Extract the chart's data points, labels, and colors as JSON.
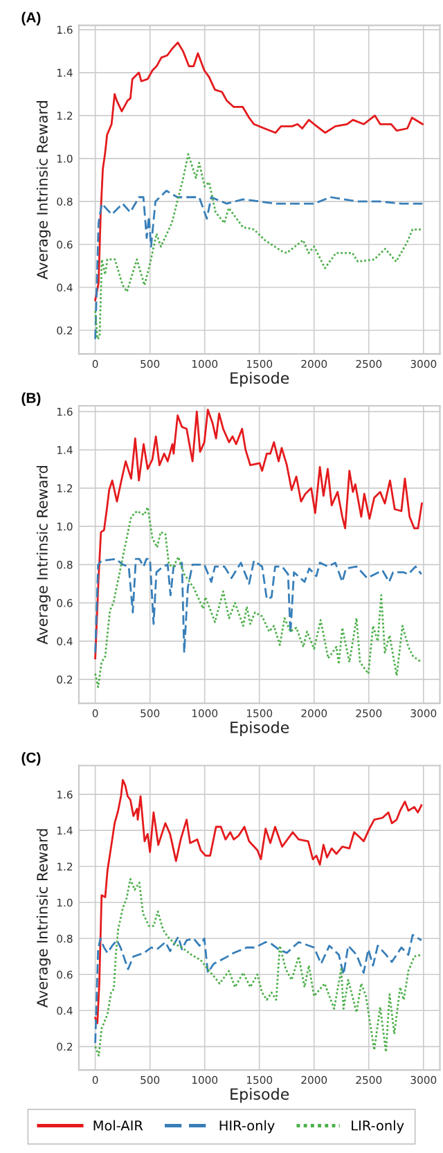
{
  "chart_data": [
    {
      "type": "line",
      "title": "(A)",
      "xlabel": "Episode",
      "ylabel": "Average Intrinsic Reward",
      "xlim": [
        -150,
        3150
      ],
      "ylim": [
        0.09,
        1.62
      ],
      "xticks": [
        0,
        500,
        1000,
        1500,
        2000,
        2500,
        3000
      ],
      "yticks": [
        {
          "value": 0.2,
          "label": "0.2"
        },
        {
          "value": 0.4,
          "label": "0.4"
        },
        {
          "value": 0.6,
          "label": "0.6"
        },
        {
          "value": 0.8,
          "label": "0.8"
        },
        {
          "value": 1.0,
          "label": "1.0"
        },
        {
          "value": 1.2,
          "label": "1.2"
        },
        {
          "value": 1.4,
          "label": "1.4"
        },
        {
          "value": 1.6,
          "label": "1.6"
        }
      ],
      "grid": true,
      "legend": "bottom",
      "series": [
        {
          "name": "Mol-AIR",
          "color": "#e41a1c",
          "line_style": "solid",
          "x": [
            0,
            30,
            50,
            69,
            91,
            108,
            149,
            177,
            196,
            242,
            296,
            321,
            339,
            399,
            421,
            479,
            522,
            561,
            604,
            658,
            701,
            755,
            802,
            856,
            899,
            938,
            997,
            1040,
            1094,
            1158,
            1201,
            1266,
            1348,
            1406,
            1450,
            1547,
            1648,
            1698,
            1799,
            1849,
            1892,
            1952,
            2000,
            2101,
            2194,
            2302,
            2355,
            2453,
            2556,
            2604,
            2705,
            2755,
            2852,
            2895,
            2992
          ],
          "values": [
            0.34,
            0.42,
            0.75,
            0.95,
            1.03,
            1.11,
            1.16,
            1.3,
            1.27,
            1.22,
            1.27,
            1.28,
            1.37,
            1.4,
            1.36,
            1.37,
            1.41,
            1.43,
            1.47,
            1.48,
            1.51,
            1.54,
            1.5,
            1.43,
            1.43,
            1.49,
            1.41,
            1.38,
            1.32,
            1.31,
            1.27,
            1.24,
            1.24,
            1.19,
            1.16,
            1.14,
            1.12,
            1.15,
            1.15,
            1.16,
            1.14,
            1.18,
            1.16,
            1.12,
            1.15,
            1.16,
            1.18,
            1.16,
            1.2,
            1.16,
            1.16,
            1.13,
            1.14,
            1.19,
            1.16
          ]
        },
        {
          "name": "HIR-only",
          "color": "#377eb8",
          "line_style": "dashed",
          "x": [
            0,
            30,
            60,
            150,
            250,
            320,
            400,
            440,
            470,
            490,
            510,
            550,
            650,
            750,
            850,
            950,
            1020,
            1060,
            1200,
            1350,
            1500,
            1650,
            1750,
            2000,
            2150,
            2400,
            2600,
            2800,
            2990
          ],
          "values": [
            0.16,
            0.7,
            0.79,
            0.74,
            0.79,
            0.75,
            0.82,
            0.82,
            0.63,
            0.73,
            0.59,
            0.8,
            0.85,
            0.82,
            0.82,
            0.82,
            0.72,
            0.82,
            0.79,
            0.81,
            0.8,
            0.79,
            0.79,
            0.79,
            0.82,
            0.8,
            0.8,
            0.79,
            0.79
          ]
        },
        {
          "name": "LIR-only",
          "color": "#4daf4a",
          "line_style": "dotted",
          "x": [
            0,
            20,
            40,
            60,
            90,
            110,
            180,
            250,
            290,
            380,
            450,
            500,
            560,
            600,
            700,
            800,
            850,
            920,
            950,
            1000,
            1040,
            1100,
            1180,
            1220,
            1350,
            1450,
            1550,
            1700,
            1750,
            1900,
            1950,
            2000,
            2100,
            2200,
            2350,
            2400,
            2550,
            2650,
            2750,
            2850,
            2900,
            2990
          ],
          "values": [
            0.29,
            0.16,
            0.17,
            0.53,
            0.46,
            0.53,
            0.53,
            0.41,
            0.38,
            0.53,
            0.41,
            0.51,
            0.65,
            0.59,
            0.7,
            0.9,
            1.02,
            0.91,
            0.98,
            0.87,
            0.89,
            0.75,
            0.7,
            0.77,
            0.68,
            0.67,
            0.62,
            0.57,
            0.56,
            0.62,
            0.56,
            0.59,
            0.49,
            0.56,
            0.56,
            0.52,
            0.53,
            0.58,
            0.52,
            0.61,
            0.67,
            0.67
          ]
        }
      ]
    },
    {
      "type": "line",
      "title": "(B)",
      "xlabel": "Episode",
      "ylabel": "Average Intrinsic Reward",
      "xlim": [
        -150,
        3150
      ],
      "ylim": [
        0.075,
        1.63
      ],
      "xticks": [
        0,
        500,
        1000,
        1500,
        2000,
        2500,
        3000
      ],
      "yticks": [
        {
          "value": 0.2,
          "label": "0.2"
        },
        {
          "value": 0.4,
          "label": "0.4"
        },
        {
          "value": 0.6,
          "label": "0.6"
        },
        {
          "value": 0.8,
          "label": "0.8"
        },
        {
          "value": 1.0,
          "label": "1.0"
        },
        {
          "value": 1.2,
          "label": "1.2"
        },
        {
          "value": 1.4,
          "label": "1.4"
        },
        {
          "value": 1.6,
          "label": "1.6"
        }
      ],
      "grid": true,
      "legend": "bottom",
      "series": [
        {
          "name": "Mol-AIR",
          "color": "#e41a1c",
          "line_style": "solid",
          "x": [
            0,
            30,
            52,
            80,
            108,
            127,
            155,
            198,
            235,
            278,
            328,
            365,
            399,
            442,
            479,
            522,
            554,
            587,
            630,
            662,
            705,
            716,
            753,
            792,
            835,
            889,
            928,
            958,
            997,
            1029,
            1072,
            1104,
            1132,
            1169,
            1223,
            1255,
            1288,
            1342,
            1374,
            1417,
            1503,
            1525,
            1568,
            1600,
            1633,
            1676,
            1704,
            1751,
            1795,
            1838,
            1881,
            1920,
            1974,
            2010,
            2053,
            2086,
            2125,
            2161,
            2215,
            2258,
            2284,
            2323,
            2355,
            2377,
            2431,
            2459,
            2506,
            2550,
            2604,
            2647,
            2694,
            2737,
            2798,
            2830,
            2873,
            2916,
            2950,
            2985
          ],
          "values": [
            0.31,
            0.73,
            0.97,
            0.98,
            1.1,
            1.19,
            1.24,
            1.13,
            1.23,
            1.34,
            1.25,
            1.46,
            1.24,
            1.43,
            1.3,
            1.35,
            1.47,
            1.32,
            1.38,
            1.34,
            1.43,
            1.38,
            1.58,
            1.52,
            1.51,
            1.34,
            1.6,
            1.39,
            1.44,
            1.61,
            1.54,
            1.46,
            1.59,
            1.51,
            1.44,
            1.47,
            1.43,
            1.51,
            1.4,
            1.32,
            1.33,
            1.29,
            1.38,
            1.38,
            1.44,
            1.34,
            1.41,
            1.32,
            1.19,
            1.26,
            1.13,
            1.17,
            1.2,
            1.07,
            1.31,
            1.16,
            1.3,
            1.11,
            1.18,
            1.05,
            0.99,
            1.29,
            1.18,
            1.22,
            1.05,
            1.17,
            1.04,
            1.15,
            1.18,
            1.12,
            1.24,
            1.09,
            1.08,
            1.25,
            1.05,
            0.99,
            0.99,
            1.12
          ]
        },
        {
          "name": "HIR-only",
          "color": "#377eb8",
          "line_style": "dashed",
          "x": [
            0,
            26,
            58,
            188,
            252,
            306,
            343,
            371,
            403,
            442,
            468,
            500,
            533,
            559,
            619,
            662,
            688,
            716,
            770,
            792,
            813,
            846,
            889,
            997,
            1061,
            1094,
            1180,
            1245,
            1331,
            1406,
            1450,
            1525,
            1568,
            1611,
            1644,
            1708,
            1762,
            1784,
            1816,
            1913,
            1956,
            2021,
            2053,
            2129,
            2194,
            2258,
            2291,
            2388,
            2485,
            2625,
            2686,
            2722,
            2819,
            2862,
            2927,
            2981
          ],
          "values": [
            0.34,
            0.8,
            0.82,
            0.83,
            0.8,
            0.79,
            0.55,
            0.83,
            0.83,
            0.79,
            0.83,
            0.83,
            0.49,
            0.76,
            0.79,
            0.8,
            0.64,
            0.79,
            0.8,
            0.81,
            0.34,
            0.68,
            0.8,
            0.8,
            0.71,
            0.79,
            0.79,
            0.73,
            0.81,
            0.7,
            0.82,
            0.79,
            0.62,
            0.63,
            0.79,
            0.79,
            0.75,
            0.44,
            0.76,
            0.71,
            0.78,
            0.74,
            0.81,
            0.79,
            0.81,
            0.71,
            0.78,
            0.79,
            0.73,
            0.77,
            0.71,
            0.76,
            0.76,
            0.75,
            0.79,
            0.75
          ]
        },
        {
          "name": "LIR-only",
          "color": "#4daf4a",
          "line_style": "dotted",
          "x": [
            0,
            26,
            58,
            91,
            134,
            166,
            252,
            328,
            382,
            447,
            479,
            522,
            565,
            598,
            641,
            673,
            716,
            759,
            813,
            899,
            986,
            1007,
            1094,
            1169,
            1223,
            1277,
            1352,
            1385,
            1417,
            1460,
            1525,
            1590,
            1633,
            1687,
            1730,
            1784,
            1838,
            1902,
            1935,
            2000,
            2060,
            2129,
            2204,
            2226,
            2258,
            2323,
            2388,
            2420,
            2496,
            2539,
            2582,
            2614,
            2647,
            2690,
            2755,
            2808,
            2862,
            2906,
            2981
          ],
          "values": [
            0.23,
            0.16,
            0.29,
            0.32,
            0.56,
            0.6,
            0.84,
            1.05,
            1.08,
            1.06,
            1.1,
            0.94,
            0.89,
            0.97,
            0.96,
            0.8,
            0.79,
            0.84,
            0.75,
            0.68,
            0.57,
            0.63,
            0.5,
            0.66,
            0.52,
            0.6,
            0.48,
            0.58,
            0.49,
            0.55,
            0.53,
            0.45,
            0.48,
            0.38,
            0.52,
            0.45,
            0.47,
            0.37,
            0.45,
            0.36,
            0.51,
            0.31,
            0.37,
            0.28,
            0.47,
            0.29,
            0.52,
            0.29,
            0.23,
            0.48,
            0.4,
            0.64,
            0.34,
            0.43,
            0.22,
            0.48,
            0.37,
            0.32,
            0.29
          ]
        }
      ]
    },
    {
      "type": "line",
      "title": "(C)",
      "xlabel": "Episode",
      "ylabel": "Average Intrinsic Reward",
      "xlim": [
        -150,
        3150
      ],
      "ylim": [
        0.07,
        1.76
      ],
      "xticks": [
        0,
        500,
        1000,
        1500,
        2000,
        2500,
        3000
      ],
      "yticks": [
        {
          "value": 0.2,
          "label": "0.2"
        },
        {
          "value": 0.4,
          "label": "0.4"
        },
        {
          "value": 0.6,
          "label": "0.6"
        },
        {
          "value": 0.8,
          "label": "0.8"
        },
        {
          "value": 1.0,
          "label": "1.0"
        },
        {
          "value": 1.2,
          "label": "1.2"
        },
        {
          "value": 1.4,
          "label": "1.4"
        },
        {
          "value": 1.6,
          "label": "1.6"
        }
      ],
      "grid": true,
      "legend": "bottom",
      "series": [
        {
          "name": "Mol-AIR",
          "color": "#e41a1c",
          "line_style": "solid",
          "x": [
            0,
            19,
            37,
            58,
            91,
            112,
            145,
            177,
            209,
            235,
            252,
            274,
            296,
            321,
            349,
            382,
            388,
            414,
            451,
            479,
            500,
            533,
            576,
            608,
            641,
            684,
            738,
            781,
            835,
            867,
            932,
            964,
            1007,
            1050,
            1104,
            1148,
            1191,
            1234,
            1266,
            1309,
            1363,
            1406,
            1482,
            1514,
            1557,
            1600,
            1644,
            1708,
            1805,
            1859,
            1946,
            1989,
            2021,
            2053,
            2086,
            2118,
            2161,
            2204,
            2258,
            2323,
            2366,
            2420,
            2453,
            2506,
            2550,
            2625,
            2679,
            2711,
            2755,
            2787,
            2830,
            2862,
            2916,
            2949,
            2981
          ],
          "values": [
            0.36,
            0.33,
            0.55,
            1.04,
            1.03,
            1.18,
            1.31,
            1.44,
            1.51,
            1.59,
            1.68,
            1.65,
            1.59,
            1.57,
            1.48,
            1.52,
            1.46,
            1.59,
            1.34,
            1.38,
            1.28,
            1.5,
            1.32,
            1.38,
            1.44,
            1.38,
            1.23,
            1.35,
            1.46,
            1.33,
            1.35,
            1.29,
            1.26,
            1.26,
            1.42,
            1.42,
            1.35,
            1.39,
            1.35,
            1.37,
            1.42,
            1.34,
            1.29,
            1.24,
            1.41,
            1.33,
            1.42,
            1.31,
            1.39,
            1.35,
            1.34,
            1.24,
            1.26,
            1.21,
            1.32,
            1.25,
            1.3,
            1.27,
            1.31,
            1.3,
            1.39,
            1.36,
            1.34,
            1.41,
            1.46,
            1.47,
            1.5,
            1.44,
            1.46,
            1.51,
            1.56,
            1.51,
            1.53,
            1.5,
            1.54
          ]
        },
        {
          "name": "HIR-only",
          "color": "#377eb8",
          "line_style": "dashed",
          "x": [
            0,
            26,
            47,
            80,
            112,
            155,
            198,
            231,
            300,
            349,
            447,
            511,
            565,
            641,
            684,
            759,
            792,
            835,
            899,
            953,
            997,
            1029,
            1083,
            1180,
            1266,
            1385,
            1460,
            1557,
            1611,
            1676,
            1751,
            1859,
            2000,
            2064,
            2140,
            2226,
            2269,
            2312,
            2388,
            2453,
            2496,
            2539,
            2582,
            2657,
            2711,
            2798,
            2862,
            2901,
            2981
          ],
          "values": [
            0.22,
            0.74,
            0.8,
            0.75,
            0.72,
            0.76,
            0.79,
            0.75,
            0.63,
            0.7,
            0.72,
            0.75,
            0.74,
            0.78,
            0.73,
            0.81,
            0.74,
            0.79,
            0.8,
            0.76,
            0.8,
            0.61,
            0.66,
            0.69,
            0.72,
            0.75,
            0.75,
            0.78,
            0.77,
            0.74,
            0.72,
            0.78,
            0.75,
            0.66,
            0.76,
            0.71,
            0.6,
            0.76,
            0.71,
            0.61,
            0.74,
            0.65,
            0.76,
            0.71,
            0.67,
            0.75,
            0.71,
            0.82,
            0.79
          ]
        },
        {
          "name": "LIR-only",
          "color": "#4daf4a",
          "line_style": "dotted",
          "x": [
            0,
            32,
            58,
            112,
            145,
            170,
            188,
            209,
            252,
            285,
            321,
            360,
            403,
            436,
            490,
            533,
            572,
            619,
            662,
            727,
            792,
            878,
            964,
            1029,
            1137,
            1223,
            1277,
            1352,
            1417,
            1482,
            1525,
            1568,
            1611,
            1654,
            1687,
            1741,
            1795,
            1859,
            1913,
            1952,
            2000,
            2097,
            2183,
            2248,
            2269,
            2312,
            2388,
            2431,
            2474,
            2550,
            2604,
            2657,
            2690,
            2733,
            2787,
            2819,
            2862,
            2916,
            2981
          ],
          "values": [
            0.2,
            0.15,
            0.3,
            0.38,
            0.5,
            0.52,
            0.71,
            0.85,
            0.97,
            1.02,
            1.13,
            1.07,
            1.11,
            0.94,
            0.87,
            0.87,
            0.95,
            0.85,
            0.81,
            0.77,
            0.75,
            0.71,
            0.68,
            0.63,
            0.55,
            0.62,
            0.53,
            0.61,
            0.53,
            0.6,
            0.5,
            0.46,
            0.5,
            0.46,
            0.76,
            0.63,
            0.57,
            0.7,
            0.53,
            0.65,
            0.48,
            0.55,
            0.41,
            0.63,
            0.41,
            0.57,
            0.39,
            0.55,
            0.48,
            0.18,
            0.42,
            0.17,
            0.49,
            0.27,
            0.53,
            0.46,
            0.62,
            0.7,
            0.71
          ]
        }
      ]
    }
  ]
}
